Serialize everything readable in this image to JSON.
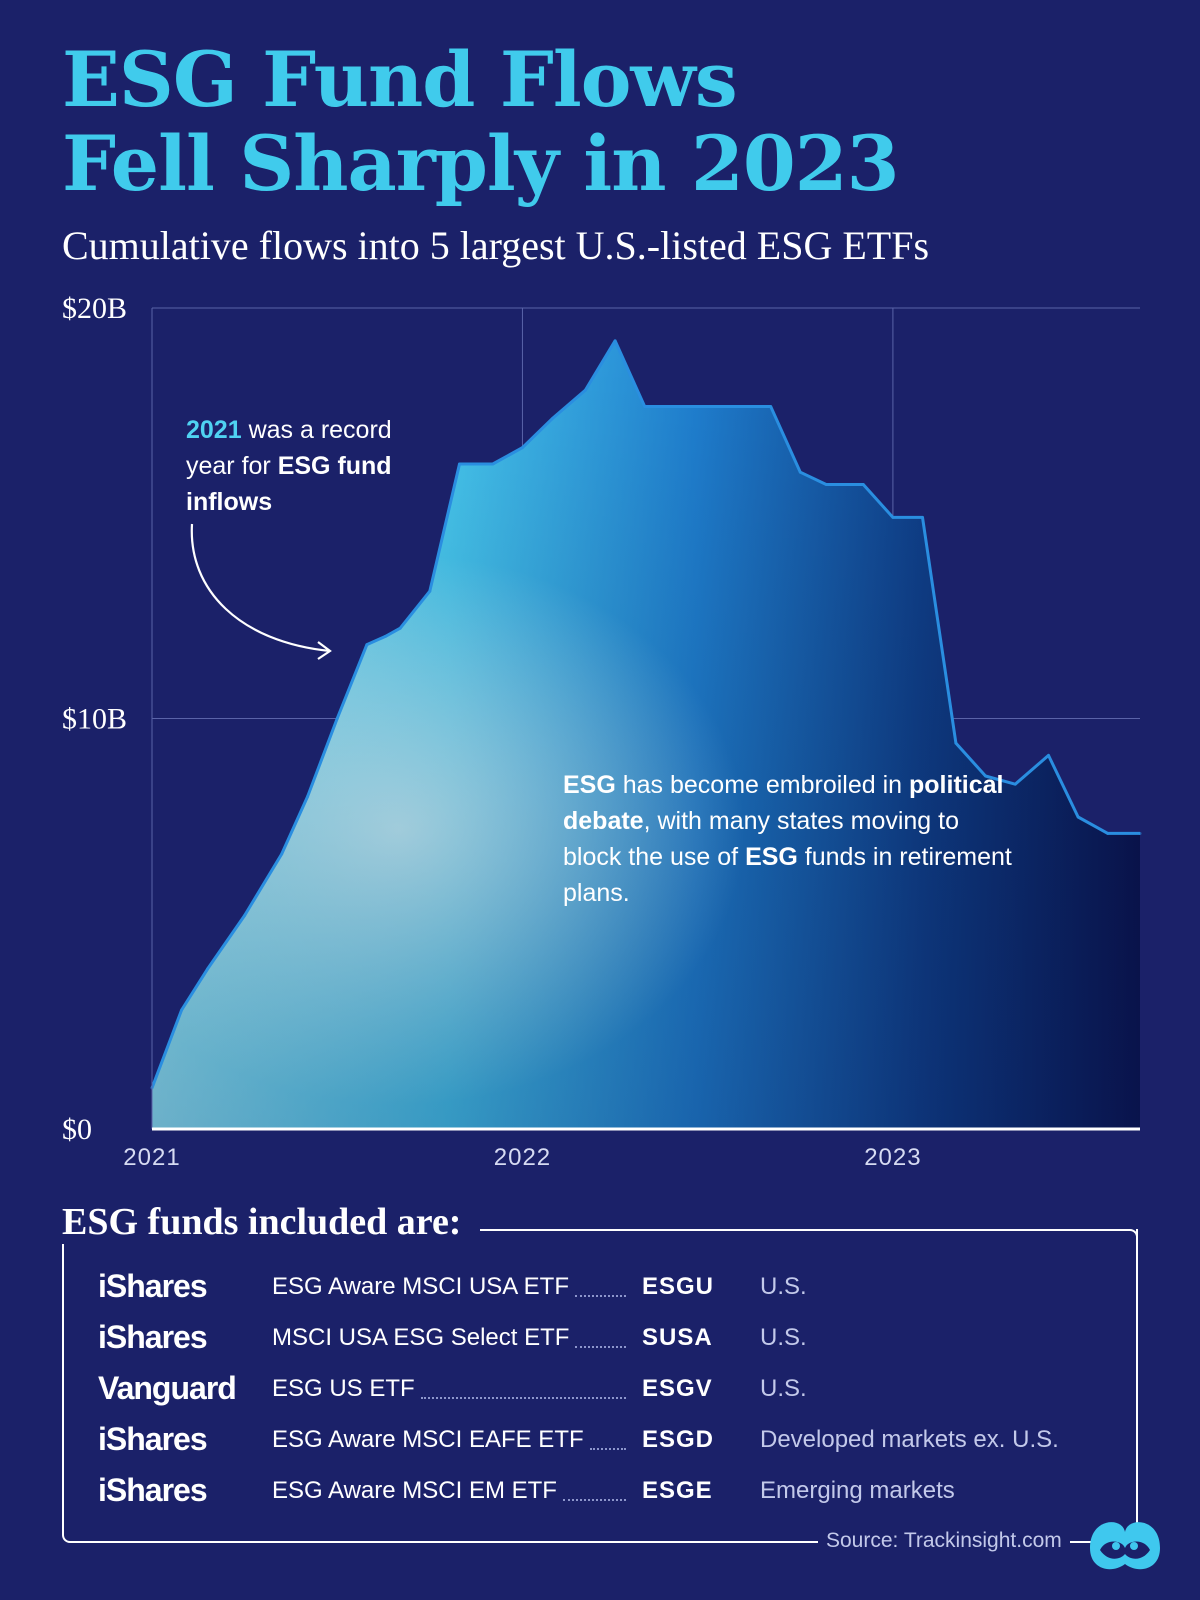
{
  "header": {
    "title_line1": "ESG Fund Flows",
    "title_line2": "Fell Sharply in 2023",
    "subtitle": "Cumulative flows into 5 largest U.S.-listed ESG ETFs"
  },
  "chart_data": {
    "type": "area",
    "title": "Cumulative flows into 5 largest U.S.-listed ESG ETFs",
    "xlabel": "",
    "ylabel": "",
    "y_unit": "$B",
    "ylim": [
      0,
      20
    ],
    "xlim": [
      2021.0,
      2023.667
    ],
    "y_ticks": [
      0,
      10,
      20
    ],
    "y_tick_labels": [
      "$0",
      "$10B",
      "$20B"
    ],
    "x_ticks": [
      2021,
      2022,
      2023
    ],
    "x_tick_labels": [
      "2021",
      "2022",
      "2023"
    ],
    "grid": true,
    "legend": "none",
    "series": [
      {
        "name": "Cumulative flows",
        "x": [
          2021.0,
          2021.08,
          2021.15,
          2021.25,
          2021.35,
          2021.42,
          2021.5,
          2021.58,
          2021.63,
          2021.67,
          2021.75,
          2021.83,
          2021.92,
          2022.0,
          2022.08,
          2022.17,
          2022.25,
          2022.33,
          2022.42,
          2022.5,
          2022.58,
          2022.67,
          2022.75,
          2022.82,
          2022.92,
          2023.0,
          2023.08,
          2023.17,
          2023.25,
          2023.33,
          2023.42,
          2023.5,
          2023.58,
          2023.667
        ],
        "y": [
          1.0,
          2.9,
          3.9,
          5.2,
          6.7,
          8.1,
          10.0,
          11.8,
          12.0,
          12.2,
          13.1,
          16.2,
          16.2,
          16.6,
          17.3,
          18.0,
          19.2,
          17.6,
          17.6,
          17.6,
          17.6,
          17.6,
          16.0,
          15.7,
          15.7,
          14.9,
          14.9,
          9.4,
          8.6,
          8.4,
          9.1,
          7.6,
          7.2,
          7.2
        ]
      }
    ],
    "annotations": [
      {
        "highlight": "2021",
        "text_1": " was a record year for ",
        "bold": "ESG fund inflows",
        "target": 2021.5
      },
      {
        "bold_1": "ESG",
        "text_1": " has become embroiled in ",
        "bold_2": "political debate",
        "text_2": ", with many states moving to block the use of ",
        "bold_3": "ESG",
        "text_3": " funds in retirement plans."
      }
    ]
  },
  "funds": {
    "heading": "ESG funds included are:",
    "rows": [
      {
        "brand": "iShares",
        "name": "ESG Aware MSCI USA ETF",
        "ticker": "ESGU",
        "region": "U.S."
      },
      {
        "brand": "iShares",
        "name": "MSCI USA ESG Select ETF",
        "ticker": "SUSA",
        "region": "U.S."
      },
      {
        "brand": "Vanguard",
        "name": "ESG US ETF",
        "ticker": "ESGV",
        "region": "U.S."
      },
      {
        "brand": "iShares",
        "name": "ESG Aware MSCI EAFE ETF",
        "ticker": "ESGD",
        "region": "Developed markets ex. U.S."
      },
      {
        "brand": "iShares",
        "name": "ESG Aware MSCI EM ETF",
        "ticker": "ESGE",
        "region": "Emerging markets"
      }
    ]
  },
  "footer": {
    "source": "Source: Trackinsight.com",
    "logo_icon": "visual-capitalist-logo-icon"
  },
  "colors": {
    "background": "#1b2169",
    "title": "#40cbec",
    "line": "#2a8ee0",
    "highlight": "#4fd2f2"
  }
}
